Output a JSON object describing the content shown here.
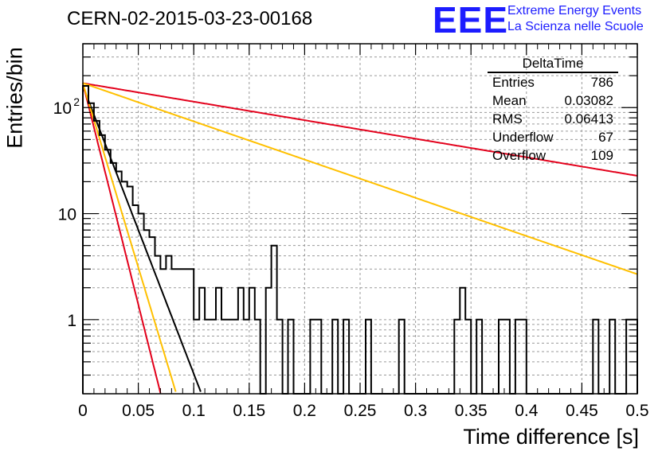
{
  "chart_data": {
    "type": "histogram",
    "title": "CERN-02-2015-03-23-00168",
    "xlabel": "Time difference [s]",
    "ylabel": "Entries/bin",
    "xlim": [
      0,
      0.5
    ],
    "ylim": [
      0.2,
      400
    ],
    "yscale": "log",
    "grid": true,
    "x_ticks": [
      "0",
      "0.05",
      "0.1",
      "0.15",
      "0.2",
      "0.25",
      "0.3",
      "0.35",
      "0.4",
      "0.45",
      "0.5"
    ],
    "y_ticks": [
      "1",
      "10",
      "10^2"
    ],
    "bin_width": 0.005,
    "bins": [
      {
        "x": 0.0,
        "y": 160
      },
      {
        "x": 0.005,
        "y": 110
      },
      {
        "x": 0.01,
        "y": 75
      },
      {
        "x": 0.015,
        "y": 55
      },
      {
        "x": 0.02,
        "y": 40
      },
      {
        "x": 0.025,
        "y": 30
      },
      {
        "x": 0.03,
        "y": 25
      },
      {
        "x": 0.035,
        "y": 20
      },
      {
        "x": 0.04,
        "y": 18
      },
      {
        "x": 0.045,
        "y": 12
      },
      {
        "x": 0.05,
        "y": 10
      },
      {
        "x": 0.055,
        "y": 7
      },
      {
        "x": 0.06,
        "y": 6
      },
      {
        "x": 0.065,
        "y": 4
      },
      {
        "x": 0.07,
        "y": 3
      },
      {
        "x": 0.075,
        "y": 4
      },
      {
        "x": 0.08,
        "y": 3
      },
      {
        "x": 0.085,
        "y": 3
      },
      {
        "x": 0.09,
        "y": 3
      },
      {
        "x": 0.095,
        "y": 3
      },
      {
        "x": 0.1,
        "y": 1
      },
      {
        "x": 0.105,
        "y": 2
      },
      {
        "x": 0.11,
        "y": 1
      },
      {
        "x": 0.115,
        "y": 1
      },
      {
        "x": 0.12,
        "y": 2
      },
      {
        "x": 0.125,
        "y": 1
      },
      {
        "x": 0.13,
        "y": 1
      },
      {
        "x": 0.135,
        "y": 1
      },
      {
        "x": 0.14,
        "y": 2
      },
      {
        "x": 0.145,
        "y": 1
      },
      {
        "x": 0.15,
        "y": 2
      },
      {
        "x": 0.155,
        "y": 1
      },
      {
        "x": 0.165,
        "y": 2
      },
      {
        "x": 0.17,
        "y": 5
      },
      {
        "x": 0.175,
        "y": 1
      },
      {
        "x": 0.185,
        "y": 1
      },
      {
        "x": 0.205,
        "y": 1
      },
      {
        "x": 0.21,
        "y": 1
      },
      {
        "x": 0.225,
        "y": 1
      },
      {
        "x": 0.235,
        "y": 1
      },
      {
        "x": 0.255,
        "y": 1
      },
      {
        "x": 0.285,
        "y": 1
      },
      {
        "x": 0.335,
        "y": 1
      },
      {
        "x": 0.34,
        "y": 2
      },
      {
        "x": 0.345,
        "y": 1
      },
      {
        "x": 0.355,
        "y": 1
      },
      {
        "x": 0.375,
        "y": 1
      },
      {
        "x": 0.38,
        "y": 1
      },
      {
        "x": 0.39,
        "y": 1
      },
      {
        "x": 0.395,
        "y": 1
      },
      {
        "x": 0.46,
        "y": 1
      },
      {
        "x": 0.475,
        "y": 1
      },
      {
        "x": 0.49,
        "y": 1
      },
      {
        "x": 0.495,
        "y": 1
      }
    ],
    "fits": [
      {
        "color": "#000000",
        "amplitude": 160,
        "tau": 0.016
      },
      {
        "color": "#e3001b",
        "amplitude": 170,
        "tau": 0.0104
      },
      {
        "color": "#ffc000",
        "amplitude": 170,
        "tau": 0.0125
      },
      {
        "color": "#e3001b",
        "amplitude": 170,
        "tau": 0.2485
      },
      {
        "color": "#ffc000",
        "amplitude": 170,
        "tau": 0.1205
      }
    ]
  },
  "logo": {
    "mark": "EEE",
    "line1": "Extreme Energy Events",
    "line2": "La Scienza nelle Scuole"
  },
  "stats": {
    "name": "DeltaTime",
    "rows": [
      {
        "label": "Entries",
        "value": "786"
      },
      {
        "label": "Mean",
        "value": "0.03082"
      },
      {
        "label": "RMS",
        "value": "0.06413"
      },
      {
        "label": "Underflow",
        "value": "67"
      },
      {
        "label": "Overflow",
        "value": "109"
      }
    ]
  },
  "colors": {
    "axis": "#000000",
    "grid": "#9a9a9a",
    "logo": "#1c1cff"
  }
}
